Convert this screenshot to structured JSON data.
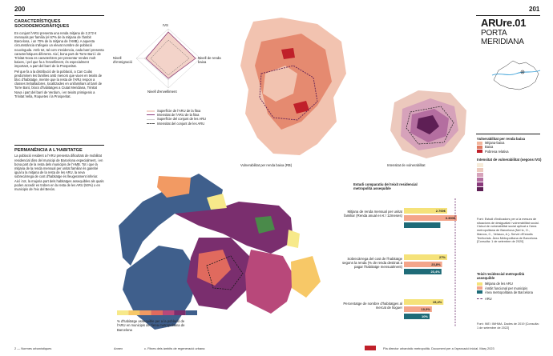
{
  "header": {
    "left_page_number": "200",
    "right_page_number": "201",
    "code": "ARUre.01",
    "name_line1": "PORTA",
    "name_line2": "MERIDIANA"
  },
  "section1": {
    "title_line1": "CARACTERÍSTIQUES",
    "title_line2": "SOCIODEMOGRÀFIQUES",
    "paragraphs": [
      "En conjunt l'ARU presenta una renda mitjana de 2.272 € mensuals per família (el 67% de la mitjana de l'àmbit Barcelona, i un 70% de la mitjana de l'AMB). A aquesta circumstància s'afegeix un elevat nombre de població nouvinguda. Amb tot, tal com s'evidencia, cada barri presenta característiques diferents. Així, bona part de Torre Baró i de Trinitat Nova es caracteritzen per presentar rendes molt baixes, i pel que fa a l'envelliment, és especialment important, a part del barri de la Prosperitat.",
      "Pel que fa a la distribució de la població, a Can Cuiàs predominen les famílies amb menors que viuen en teixits de bloc d'habitatge, mentre que la resta de l'ARU respon a classes treballadores, localitzades en unifamiliars al barri de Torre Baró, blocs d'habitatges a Ciutat Meridiana, Trinitat Nova i part del barri de Verdum, i en teixits primigenis a Trinitat Vella, Roquetes i la Prosperitat."
    ]
  },
  "section2": {
    "title": "PERMANÈNCIA A L'HABITATGE",
    "paragraph": "La població resident a l'ARU presenta dificultats de mobilitat residencial dins del municipi de Barcelona especialment, i en bona part de la resta dels municipis de l'AMB. Tot i que la mitjana de la renda mensual per unitat familiar és gairebé igual a la mitjana de la resta de les ARU, la seva sobrecàrrega de cost d'habitatge és lleugerament inferior. Així i tot, la majoria part dels habitatges assequibles als quals poden accedir es troben en la resta de les ARU (50%) o en municipis de l'eix del Besòs."
  },
  "radar": {
    "labels": {
      "top": "IVS",
      "left": "Nivell d'immigració",
      "right": "Nivell de renda baixa",
      "bottom": "Nivell d'envelliment"
    },
    "legend": [
      "Superfície de l'ARU de la fitxa",
      "Intensitat de l'ARU de la fitxa",
      "Superfície del conjunt de les ARU",
      "Intensitat del conjunt de les ARU"
    ]
  },
  "map_captions": {
    "renda": "Vulnerabilitat per renda baixa (RB)",
    "vulnerabilitat": "Intensitat de vulnerabilitat",
    "assequible": "% d'habitatge assequible per a la població de l'ARU en municipis de l'àrea metropolitana de Barcelona"
  },
  "legend_renda": {
    "title": "Vulnerabilitat per renda baixa",
    "items": [
      {
        "label": "Mitjana-baixa",
        "color": "#f2b49a"
      },
      {
        "label": "Baixa",
        "color": "#e07a60"
      },
      {
        "label": "Pobresa relativa",
        "color": "#c0202a"
      }
    ]
  },
  "legend_ivs": {
    "title": "Intensitat de vulnerabilitat (segons IVS)",
    "colors": [
      "#f6ebd9",
      "#ecc9bd",
      "#d6a2ba",
      "#b46ea0",
      "#8a3a7c",
      "#5e1f55"
    ]
  },
  "source1": "Font: Estudi d'indicadors per a la mesura de situacions de desigualtat i vulnerabilitat social. Càlcul de vulnerabilitat social aplicat a l'àrea metropolitana de Barcelona (Nel·lo, O., Marcos, C., Velasco, A.). Servei d'Estudis Territorials. Àrea Metropolitana de Barcelona. [Consulta: 1 de setembre de 2020]",
  "legend_assequible": {
    "title": "Teixit residencial metropolità assequible",
    "items": [
      {
        "label": "Mitjana de les ARU",
        "color": "#f5e27a"
      },
      {
        "label": "Àmbit funcional per municipis",
        "color": "#f4a58a"
      },
      {
        "label": "Àrea metropolitana de Barcelona",
        "color": "#1f6b78"
      },
      {
        "label": "ARU",
        "color": "#6a2a6a"
      }
    ]
  },
  "source2": "Font: INE i IMHMA. Dades de 2019 [Consulta: 1 de setembre de 2022]",
  "chart_data": {
    "type": "bar",
    "title": "Estudi comparatiu del teixit residencial metropolità assequible",
    "groups": [
      {
        "label": "Mitjana de renda mensual per unitat familiar (Renda anual en € / 12meses)",
        "values": [
          2700,
          3300,
          2270
        ],
        "labels": [
          "2.700€",
          "3.300€",
          ""
        ]
      },
      {
        "label": "Sobrecàrrega del cost de l'habitatge segons la renda (% de renda destinat a pagar l'habitatge mensualment)",
        "values": [
          27,
          23.8,
          23.4
        ],
        "labels": [
          "27%",
          "23,8%",
          "23,4%"
        ]
      },
      {
        "label": "Percentatge de nombre d'habitatges al mercat de lloguer",
        "values": [
          15.4,
          10.9,
          10
        ],
        "labels": [
          "15,4%",
          "10,9%",
          "10%"
        ]
      }
    ],
    "series": [
      "Mitjana de les ARU",
      "Àmbit funcional per municipis",
      "Àrea metropolitana de Barcelona"
    ]
  },
  "scale_bar_colors": [
    "#f7e98a",
    "#f7c867",
    "#f29a63",
    "#e06a5e",
    "#b8487a",
    "#7a2e6e",
    "#3f5f8c"
  ],
  "footer": {
    "left": "2 — Normes urbanístiques",
    "mid1": "Annex",
    "mid2": "c. Fitxes dels àmbits de regeneració urbana",
    "right": "Pla director urbanístic metropolità. Document per a l'aprovació inicial. Març 2023"
  }
}
